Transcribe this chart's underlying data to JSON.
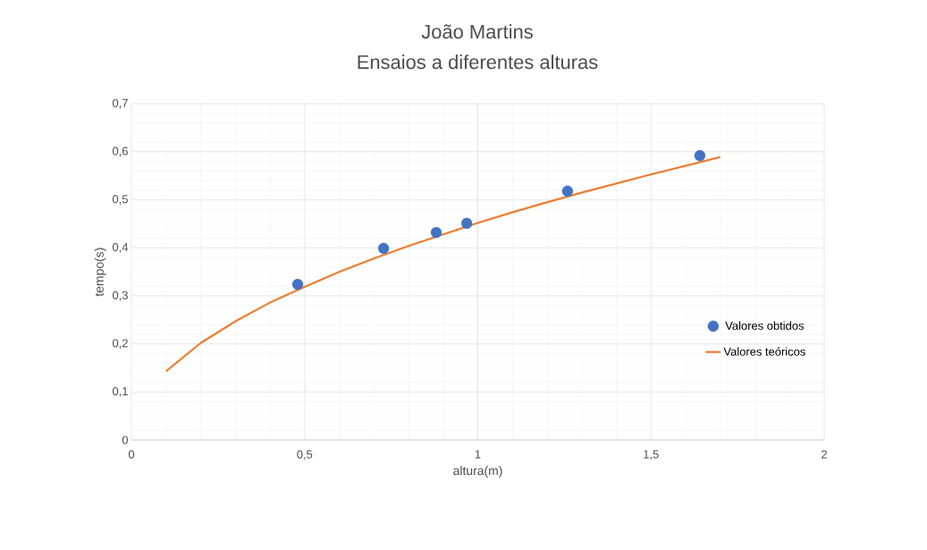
{
  "chart_data": {
    "type": "scatter",
    "title": "João Martins",
    "subtitle": "Ensaios a diferentes alturas",
    "xlabel": "altura(m)",
    "ylabel": "tempo(s)",
    "xlim": [
      0,
      2
    ],
    "ylim": [
      0,
      0.7
    ],
    "xticks": [
      0,
      {
        "value": 0.5,
        "label": "0,5"
      },
      1,
      {
        "value": 1.5,
        "label": "1,5"
      },
      2
    ],
    "yticks": [
      0,
      {
        "value": 0.1,
        "label": "0,1"
      },
      {
        "value": 0.2,
        "label": "0,2"
      },
      {
        "value": 0.3,
        "label": "0,3"
      },
      {
        "value": 0.4,
        "label": "0,4"
      },
      {
        "value": 0.5,
        "label": "0,5"
      },
      {
        "value": 0.6,
        "label": "0,6"
      },
      {
        "value": 0.7,
        "label": "0,7"
      }
    ],
    "grid": true,
    "legend": "right",
    "series": [
      {
        "name": "Valores obtidos",
        "marker": "circle",
        "color": "#4472c4",
        "x": [
          0.48,
          0.728,
          0.88,
          0.968,
          1.259,
          1.641
        ],
        "values": [
          0.324,
          0.399,
          0.432,
          0.451,
          0.518,
          0.592
        ]
      },
      {
        "name": "Valores teóricos",
        "type": "line",
        "marker": "none",
        "color": "#ed7d31",
        "x": [
          0.1,
          0.2,
          0.3,
          0.4,
          0.5,
          0.6,
          0.7,
          0.8,
          0.9,
          1.0,
          1.1,
          1.2,
          1.3,
          1.4,
          1.5,
          1.6,
          1.7
        ],
        "values": [
          0.143,
          0.202,
          0.247,
          0.286,
          0.319,
          0.35,
          0.378,
          0.404,
          0.428,
          0.452,
          0.474,
          0.495,
          0.515,
          0.534,
          0.553,
          0.571,
          0.589
        ]
      }
    ]
  }
}
